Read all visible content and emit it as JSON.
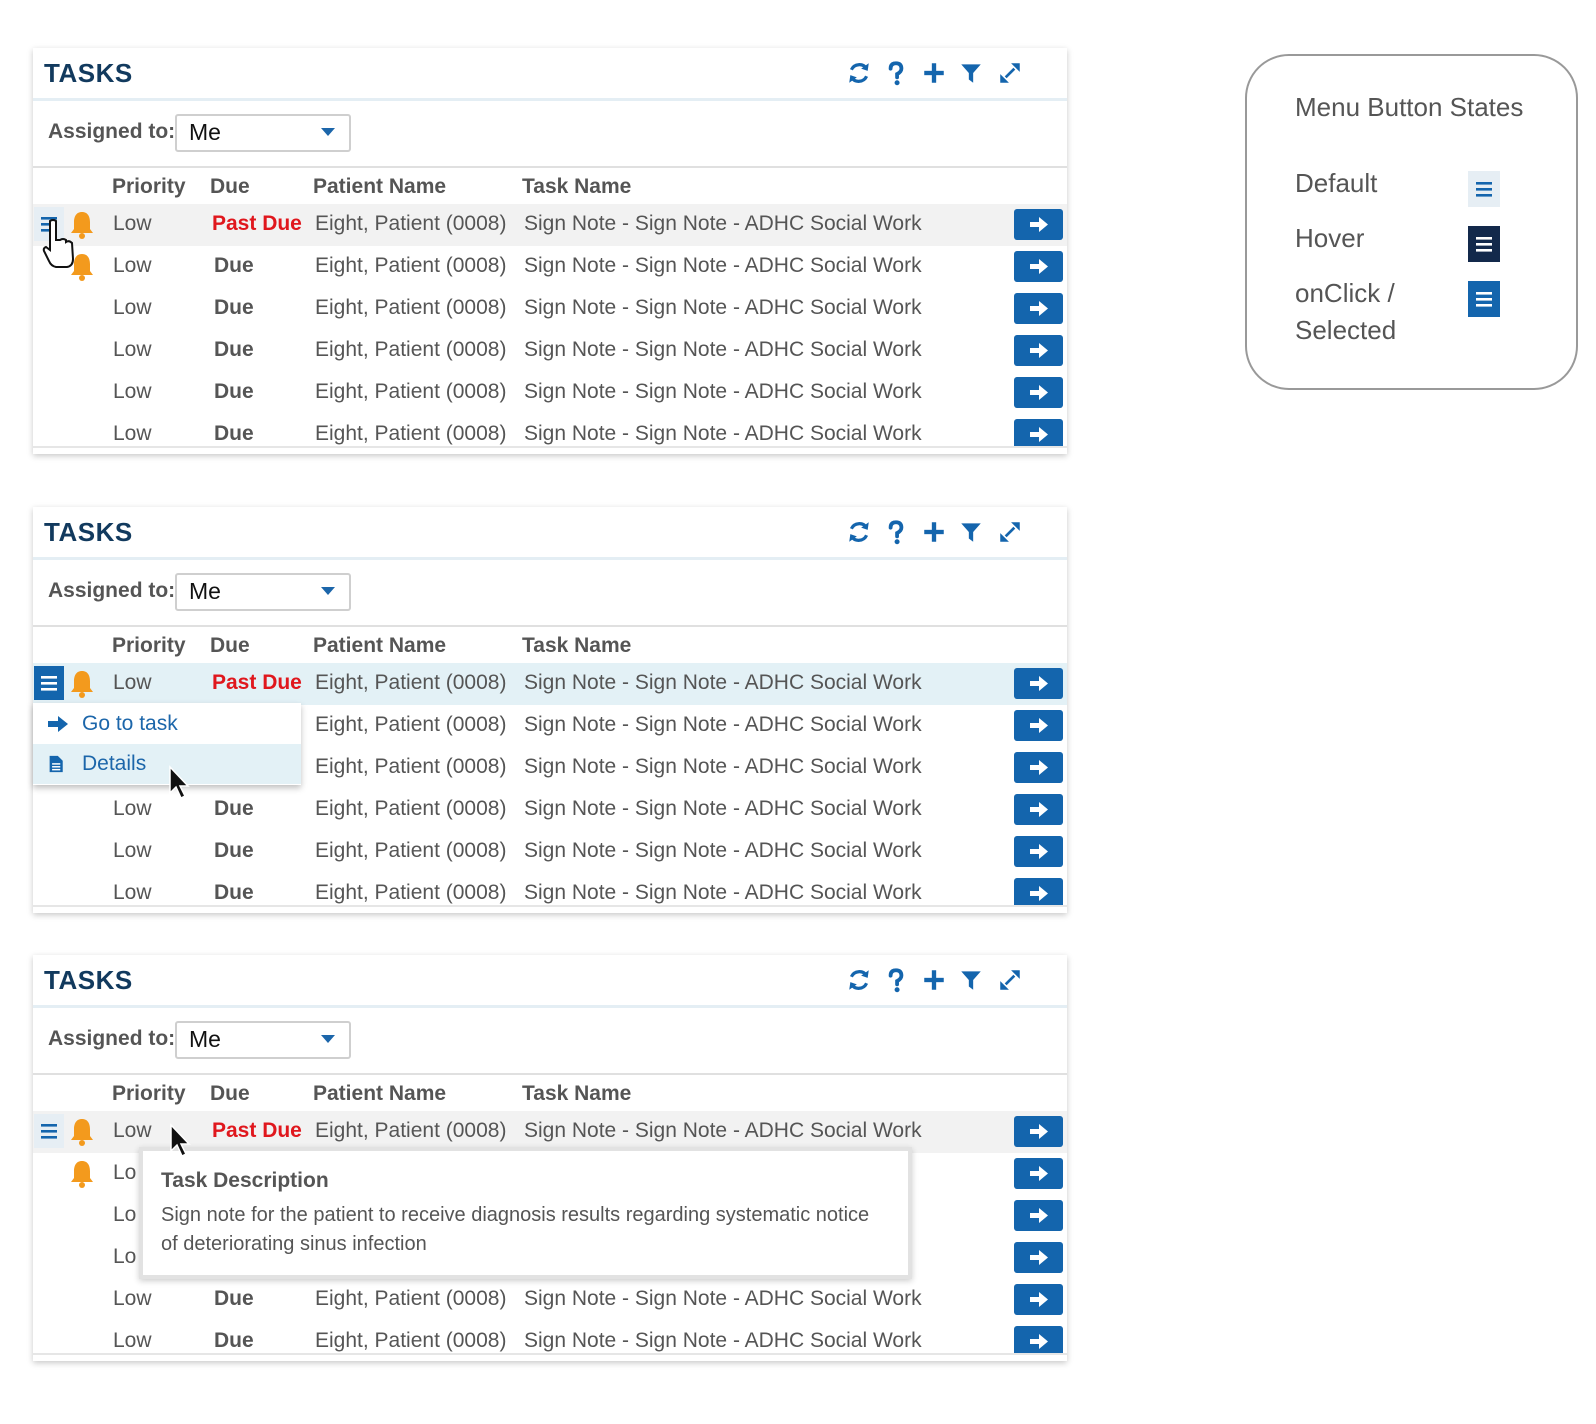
{
  "panels": [
    {
      "title": "TASKS",
      "assigned_label": "Assigned to:",
      "assigned_value": "Me",
      "columns": [
        "Priority",
        "Due",
        "Patient Name",
        "Task Name"
      ],
      "rows": [
        {
          "priority": "Low",
          "due": "Past Due",
          "patient": "Eight, Patient (0008)",
          "task": "Sign Note - Sign Note - ADHC Social Work"
        },
        {
          "priority": "Low",
          "due": "Due",
          "patient": "Eight, Patient (0008)",
          "task": "Sign Note - Sign Note - ADHC Social Work"
        },
        {
          "priority": "Low",
          "due": "Due",
          "patient": "Eight, Patient (0008)",
          "task": "Sign Note - Sign Note - ADHC Social Work"
        },
        {
          "priority": "Low",
          "due": "Due",
          "patient": "Eight, Patient (0008)",
          "task": "Sign Note - Sign Note - ADHC Social Work"
        },
        {
          "priority": "Low",
          "due": "Due",
          "patient": "Eight, Patient (0008)",
          "task": "Sign Note - Sign Note - ADHC Social Work"
        },
        {
          "priority": "Low",
          "due": "Due",
          "patient": "Eight, Patient (0008)",
          "task": "Sign Note - Sign Note - ADHC Social Work"
        }
      ]
    },
    {
      "title": "TASKS",
      "assigned_label": "Assigned to:",
      "assigned_value": "Me",
      "columns": [
        "Priority",
        "Due",
        "Patient Name",
        "Task Name"
      ],
      "rows": [
        {
          "priority": "Low",
          "due": "Past Due",
          "patient": "Eight, Patient (0008)",
          "task": "Sign Note - Sign Note - ADHC Social Work"
        },
        {
          "priority": "",
          "due": "",
          "patient": "Eight, Patient (0008)",
          "task": "Sign Note - Sign Note - ADHC Social Work"
        },
        {
          "priority": "",
          "due": "",
          "patient": "Eight, Patient (0008)",
          "task": "Sign Note - Sign Note - ADHC Social Work"
        },
        {
          "priority": "Low",
          "due": "Due",
          "patient": "Eight, Patient (0008)",
          "task": "Sign Note - Sign Note - ADHC Social Work"
        },
        {
          "priority": "Low",
          "due": "Due",
          "patient": "Eight, Patient (0008)",
          "task": "Sign Note - Sign Note - ADHC Social Work"
        },
        {
          "priority": "Low",
          "due": "Due",
          "patient": "Eight, Patient (0008)",
          "task": "Sign Note - Sign Note - ADHC Social Work"
        }
      ],
      "menu": [
        {
          "label": "Go to task",
          "icon": "arrow-right-icon"
        },
        {
          "label": "Details",
          "icon": "document-icon"
        }
      ]
    },
    {
      "title": "TASKS",
      "assigned_label": "Assigned to:",
      "assigned_value": "Me",
      "columns": [
        "Priority",
        "Due",
        "Patient Name",
        "Task Name"
      ],
      "rows": [
        {
          "priority": "Low",
          "due": "Past Due",
          "patient": "Eight, Patient (0008)",
          "task": "Sign Note - Sign Note - ADHC Social Work"
        },
        {
          "priority": "Lo",
          "due": "",
          "patient": "",
          "task": ""
        },
        {
          "priority": "Lo",
          "due": "",
          "patient": "",
          "task": ""
        },
        {
          "priority": "Lo",
          "due": "",
          "patient": "",
          "task": ""
        },
        {
          "priority": "Low",
          "due": "Due",
          "patient": "Eight, Patient (0008)",
          "task": "Sign Note - Sign Note - ADHC Social Work"
        },
        {
          "priority": "Low",
          "due": "Due",
          "patient": "Eight, Patient (0008)",
          "task": "Sign Note - Sign Note - ADHC Social Work"
        }
      ],
      "tooltip": {
        "title": "Task Description",
        "body": "Sign note for the patient to receive diagnosis results regarding systematic notice of deteriorating sinus infection"
      }
    }
  ],
  "legend": {
    "title": "Menu Button States",
    "states": [
      {
        "label": "Default",
        "color": "#e6eef4",
        "icon_color": "#1465ad"
      },
      {
        "label": "Hover",
        "color": "#13294b",
        "icon_color": "#ffffff"
      },
      {
        "label": "onClick / Selected",
        "color": "#1465ad",
        "icon_color": "#ffffff"
      }
    ]
  },
  "colors": {
    "brand_blue": "#1465ad",
    "title_navy": "#123a5e",
    "past_due_red": "#e0171d",
    "bell_orange": "#f39a1d"
  },
  "toolbar_icons": [
    "refresh-icon",
    "help-icon",
    "add-icon",
    "filter-icon",
    "expand-icon"
  ]
}
